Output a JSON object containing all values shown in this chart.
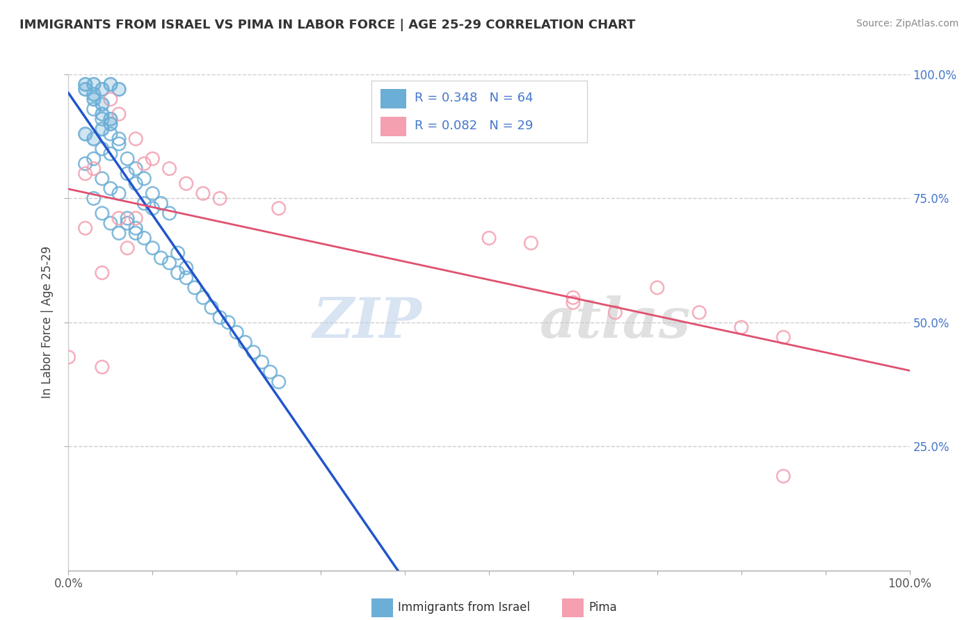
{
  "title": "IMMIGRANTS FROM ISRAEL VS PIMA IN LABOR FORCE | AGE 25-29 CORRELATION CHART",
  "source": "Source: ZipAtlas.com",
  "ylabel": "In Labor Force | Age 25-29",
  "blue_R": 0.348,
  "blue_N": 64,
  "pink_R": 0.082,
  "pink_N": 29,
  "blue_color": "#6baed6",
  "pink_color": "#f4a0b0",
  "trendline_blue": "#2255cc",
  "trendline_pink": "#e05070",
  "legend_label_blue": "Immigrants from Israel",
  "legend_label_pink": "Pima",
  "watermark_zip": "ZIP",
  "watermark_atlas": "atlas",
  "blue_scatter_x": [
    0.02,
    0.02,
    0.03,
    0.03,
    0.04,
    0.04,
    0.05,
    0.05,
    0.06,
    0.03,
    0.04,
    0.05,
    0.04,
    0.03,
    0.02,
    0.06,
    0.04,
    0.05,
    0.03,
    0.02,
    0.07,
    0.04,
    0.08,
    0.05,
    0.06,
    0.03,
    0.09,
    0.1,
    0.04,
    0.07,
    0.05,
    0.08,
    0.06,
    0.03,
    0.04,
    0.05,
    0.06,
    0.07,
    0.08,
    0.09,
    0.1,
    0.11,
    0.12,
    0.07,
    0.08,
    0.09,
    0.1,
    0.11,
    0.12,
    0.13,
    0.14,
    0.15,
    0.16,
    0.17,
    0.18,
    0.19,
    0.2,
    0.21,
    0.22,
    0.23,
    0.24,
    0.25,
    0.13,
    0.14
  ],
  "blue_scatter_y": [
    0.98,
    0.97,
    0.98,
    0.96,
    0.97,
    0.94,
    0.98,
    0.91,
    0.97,
    0.95,
    0.92,
    0.9,
    0.89,
    0.87,
    0.88,
    0.86,
    0.85,
    0.84,
    0.83,
    0.82,
    0.8,
    0.79,
    0.78,
    0.77,
    0.76,
    0.75,
    0.74,
    0.73,
    0.72,
    0.71,
    0.7,
    0.69,
    0.68,
    0.93,
    0.91,
    0.88,
    0.87,
    0.83,
    0.81,
    0.79,
    0.76,
    0.74,
    0.72,
    0.7,
    0.68,
    0.67,
    0.65,
    0.63,
    0.62,
    0.6,
    0.59,
    0.57,
    0.55,
    0.53,
    0.51,
    0.5,
    0.48,
    0.46,
    0.44,
    0.42,
    0.4,
    0.38,
    0.64,
    0.61
  ],
  "pink_scatter_x": [
    0.02,
    0.0,
    0.04,
    0.05,
    0.06,
    0.08,
    0.1,
    0.12,
    0.14,
    0.16,
    0.02,
    0.06,
    0.09,
    0.18,
    0.5,
    0.55,
    0.6,
    0.7,
    0.75,
    0.8,
    0.85,
    0.85,
    0.6,
    0.65,
    0.04,
    0.08,
    0.03,
    0.07,
    0.25
  ],
  "pink_scatter_y": [
    0.8,
    0.43,
    0.41,
    0.95,
    0.92,
    0.87,
    0.83,
    0.81,
    0.78,
    0.76,
    0.69,
    0.71,
    0.82,
    0.75,
    0.67,
    0.66,
    0.55,
    0.57,
    0.52,
    0.49,
    0.19,
    0.47,
    0.54,
    0.52,
    0.6,
    0.71,
    0.81,
    0.65,
    0.73
  ]
}
